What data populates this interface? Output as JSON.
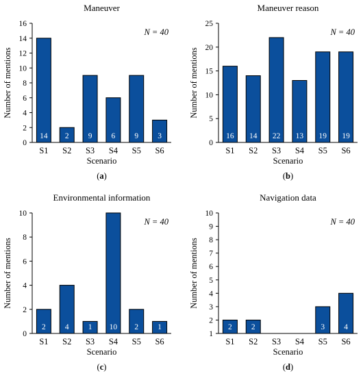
{
  "figure": {
    "xlabel": "Scenario",
    "ylabel": "Number of mentions",
    "n_label": "N = 40",
    "bar_color": "#0b4f9c",
    "bar_stroke": "#000000",
    "value_label_color": "#ffffff"
  },
  "chart_data": [
    {
      "type": "bar",
      "title": "Maneuver",
      "panel_label": "(a)",
      "categories": [
        "S1",
        "S2",
        "S3",
        "S4",
        "S5",
        "S6"
      ],
      "values": [
        14,
        2,
        9,
        6,
        9,
        3
      ],
      "ylim": [
        0,
        16
      ],
      "yticks": [
        0,
        2,
        4,
        6,
        8,
        10,
        12,
        14,
        16
      ],
      "xlabel": "Scenario",
      "ylabel": "Number of mentions",
      "annotation": "N = 40"
    },
    {
      "type": "bar",
      "title": "Maneuver reason",
      "panel_label": "(b)",
      "categories": [
        "S1",
        "S2",
        "S3",
        "S4",
        "S5",
        "S6"
      ],
      "values": [
        16,
        14,
        22,
        13,
        19,
        19
      ],
      "ylim": [
        0,
        25
      ],
      "yticks": [
        0,
        5,
        10,
        15,
        20,
        25
      ],
      "xlabel": "Scenario",
      "ylabel": "Number of mentions",
      "annotation": "N = 40"
    },
    {
      "type": "bar",
      "title": "Environmental information",
      "panel_label": "(c)",
      "categories": [
        "S1",
        "S2",
        "S3",
        "S4",
        "S5",
        "S6"
      ],
      "values": [
        2,
        4,
        1,
        10,
        2,
        1
      ],
      "ylim": [
        0,
        10
      ],
      "yticks": [
        0,
        2,
        4,
        6,
        8,
        10
      ],
      "xlabel": "Scenario",
      "ylabel": "Number of mentions",
      "annotation": "N = 40"
    },
    {
      "type": "bar",
      "title": "Navigation data",
      "panel_label": "(d)",
      "categories": [
        "S1",
        "S2",
        "S3",
        "S4",
        "S5",
        "S6"
      ],
      "values": [
        2,
        2,
        null,
        null,
        3,
        4
      ],
      "ylim": [
        1,
        10
      ],
      "yticks": [
        1,
        2,
        3,
        4,
        5,
        6,
        7,
        8,
        9,
        10
      ],
      "xlabel": "Scenario",
      "ylabel": "Number of mentions",
      "annotation": "N = 40"
    }
  ]
}
